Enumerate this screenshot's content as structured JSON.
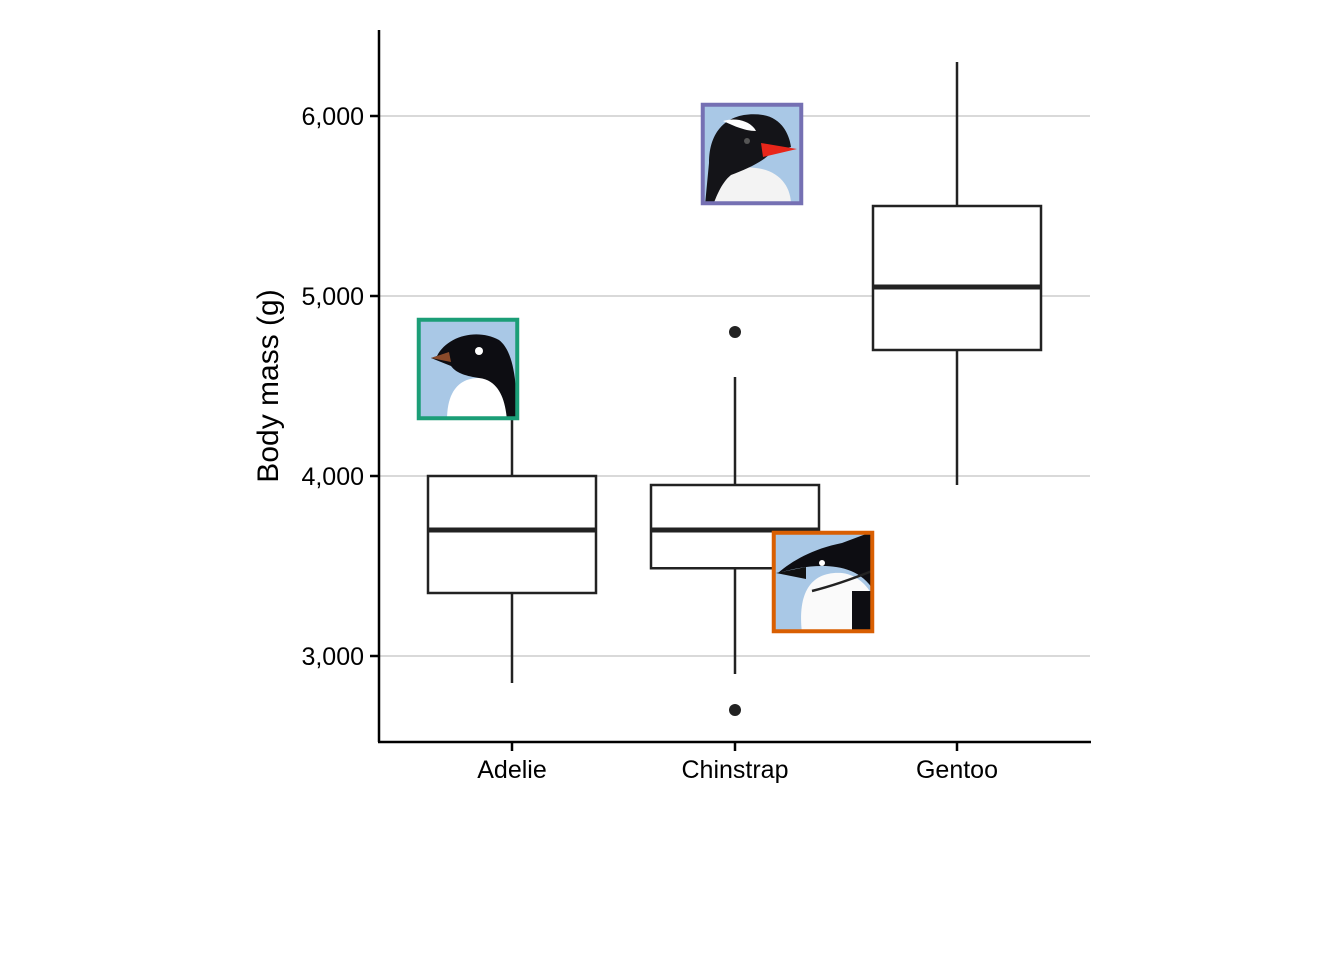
{
  "chart_data": {
    "type": "box",
    "title": "",
    "xlabel": "",
    "ylabel": "Body mass (g)",
    "ylim": [
      2520,
      6480
    ],
    "yticks": [
      3000,
      4000,
      5000,
      6000
    ],
    "ytick_labels": [
      "3,000",
      "4,000",
      "5,000",
      "6,000"
    ],
    "grid": "horizontal major",
    "categories": [
      "Adelie",
      "Chinstrap",
      "Gentoo"
    ],
    "boxes": [
      {
        "category": "Adelie",
        "whisker_low": 2850,
        "q1": 3350,
        "median": 3700,
        "q3": 4000,
        "whisker_high": 4775,
        "outliers": []
      },
      {
        "category": "Chinstrap",
        "whisker_low": 2900,
        "q1": 3487.5,
        "median": 3700,
        "q3": 3950,
        "whisker_high": 4550,
        "outliers": [
          4800,
          2700
        ]
      },
      {
        "category": "Gentoo",
        "whisker_low": 3950,
        "q1": 4700,
        "median": 5050,
        "q3": 5500,
        "whisker_high": 6300,
        "outliers": []
      }
    ],
    "image_annotations": [
      {
        "species": "Adelie",
        "border_color": "#1b9e77"
      },
      {
        "species": "Gentoo",
        "border_color": "#7570b3"
      },
      {
        "species": "Chinstrap",
        "border_color": "#d95f02"
      }
    ]
  }
}
